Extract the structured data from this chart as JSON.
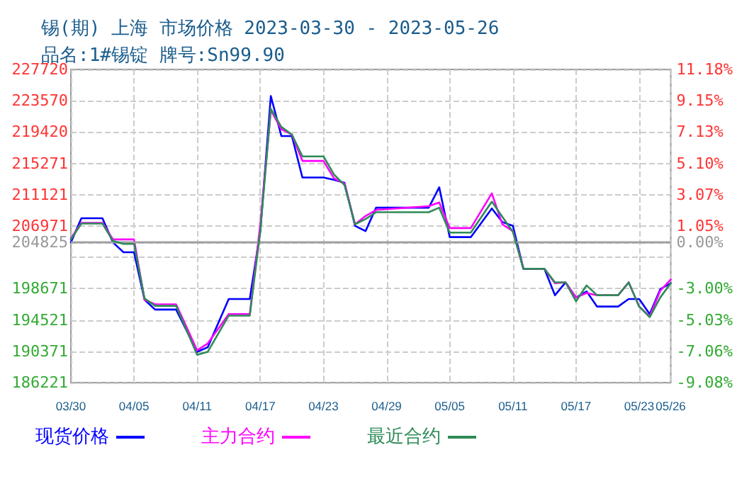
{
  "chart_data": {
    "type": "line",
    "title": "锡(期) 上海 市场价格 2023-03-30 - 2023-05-26",
    "subtitle": "品名:1#锡锭 牌号:Sn99.90",
    "x": [
      "2023-03-30",
      "2023-03-31",
      "2023-04-02",
      "2023-04-03",
      "2023-04-04",
      "2023-04-05",
      "2023-04-06",
      "2023-04-07",
      "2023-04-09",
      "2023-04-11",
      "2023-04-12",
      "2023-04-14",
      "2023-04-16",
      "2023-04-17",
      "2023-04-18",
      "2023-04-19",
      "2023-04-20",
      "2023-04-21",
      "2023-04-23",
      "2023-04-24",
      "2023-04-25",
      "2023-04-26",
      "2023-04-27",
      "2023-04-28",
      "2023-05-03",
      "2023-05-04",
      "2023-05-05",
      "2023-05-07",
      "2023-05-09",
      "2023-05-10",
      "2023-05-11",
      "2023-05-12",
      "2023-05-14",
      "2023-05-15",
      "2023-05-16",
      "2023-05-17",
      "2023-05-18",
      "2023-05-19",
      "2023-05-21",
      "2023-05-22",
      "2023-05-23",
      "2023-05-24",
      "2023-05-25",
      "2023-05-26"
    ],
    "series": [
      {
        "name": "现货价格",
        "color": "#0000ff",
        "values": [
          204800,
          208000,
          208000,
          204800,
          203500,
          203500,
          197200,
          195900,
          195900,
          190300,
          190900,
          197300,
          197300,
          206300,
          224200,
          218900,
          218900,
          213400,
          213400,
          213100,
          212700,
          207000,
          206300,
          209400,
          209400,
          212100,
          205500,
          205500,
          209300,
          207500,
          207000,
          201300,
          201300,
          197800,
          199500,
          197500,
          198300,
          196300,
          196300,
          197300,
          197300,
          195300,
          198600,
          199400
        ]
      },
      {
        "name": "主力合约",
        "color": "#ff00ff",
        "values": [
          205300,
          207400,
          207400,
          205200,
          205200,
          205200,
          197200,
          196600,
          196600,
          190500,
          191400,
          195300,
          195300,
          207200,
          222300,
          219800,
          219100,
          215600,
          215600,
          213300,
          212600,
          207200,
          208300,
          209100,
          209600,
          210100,
          206700,
          206700,
          211300,
          207200,
          206300,
          201300,
          201300,
          199400,
          199500,
          197500,
          198100,
          197800,
          197800,
          199500,
          196300,
          195000,
          198400,
          199900
        ]
      },
      {
        "name": "最近合约",
        "color": "#2e8b57",
        "values": [
          205200,
          207300,
          207300,
          205000,
          204600,
          204600,
          197400,
          196400,
          196400,
          189900,
          190300,
          195100,
          195100,
          206300,
          222500,
          220100,
          219100,
          216200,
          216200,
          213800,
          212400,
          207200,
          207900,
          208800,
          208800,
          209400,
          206100,
          206100,
          210200,
          208200,
          206200,
          201300,
          201300,
          199500,
          199500,
          197000,
          199100,
          197800,
          197800,
          199500,
          196300,
          194900,
          197500,
          199400
        ]
      }
    ],
    "xlim": [
      "2023-03-30",
      "2023-05-26"
    ],
    "xticks": [
      {
        "value": "2023-03-30",
        "label": "03/30"
      },
      {
        "value": "2023-04-05",
        "label": "04/05"
      },
      {
        "value": "2023-04-11",
        "label": "04/11"
      },
      {
        "value": "2023-04-17",
        "label": "04/17"
      },
      {
        "value": "2023-04-23",
        "label": "04/23"
      },
      {
        "value": "2023-04-29",
        "label": "04/29"
      },
      {
        "value": "2023-05-05",
        "label": "05/05"
      },
      {
        "value": "2023-05-11",
        "label": "05/11"
      },
      {
        "value": "2023-05-17",
        "label": "05/17"
      },
      {
        "value": "2023-05-23",
        "label": "05/23"
      },
      {
        "value": "2023-05-26",
        "label": "05/26"
      }
    ],
    "ylim": [
      186221,
      227720
    ],
    "yticks": [
      186221,
      190371,
      194521,
      198671,
      {
        "value": 202821,
        "label": null
      },
      204825,
      206971,
      211121,
      215271,
      219420,
      223570,
      227720
    ],
    "y2lim": [
      -9.08,
      11.18
    ],
    "y2ticks": [
      {
        "value": -9.08,
        "label": "-9.08%"
      },
      {
        "value": -7.06,
        "label": "-7.06%"
      },
      {
        "value": -5.03,
        "label": "-5.03%"
      },
      {
        "value": -3.0,
        "label": "-3.00%"
      },
      {
        "value": -0.98,
        "label": null
      },
      {
        "value": 0,
        "label": "0.00%"
      },
      {
        "value": 1.05,
        "label": "1.05%"
      },
      {
        "value": 3.07,
        "label": "3.07%"
      },
      {
        "value": 5.1,
        "label": "5.10%"
      },
      {
        "value": 7.13,
        "label": "7.13%"
      },
      {
        "value": 9.15,
        "label": "9.15%"
      },
      {
        "value": 11.18,
        "label": "11.18%"
      }
    ],
    "ref_lines": [
      {
        "axis": "y",
        "value": 204825,
        "color": "#a0a0a0"
      }
    ],
    "grid": true,
    "legend": "bottom",
    "marker": "none",
    "line_style": "solid"
  }
}
